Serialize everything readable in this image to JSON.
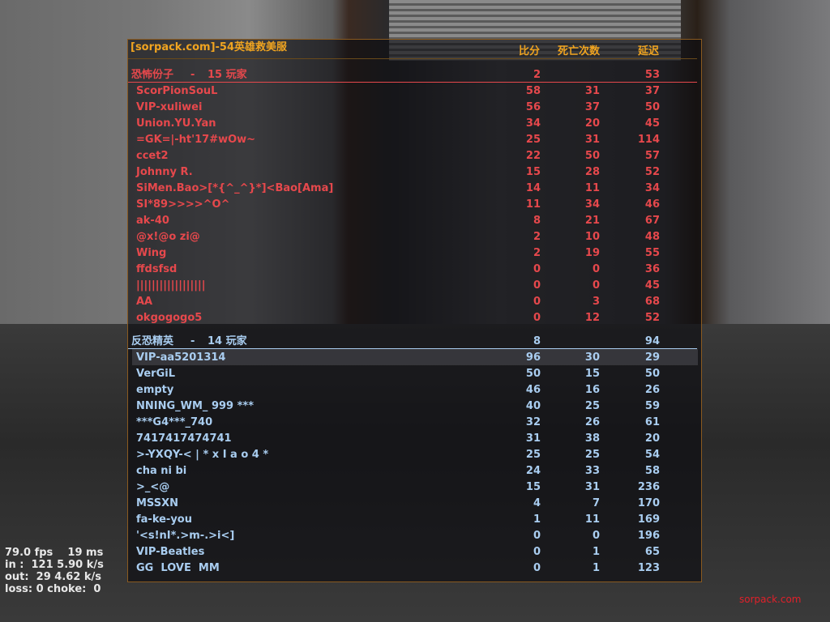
{
  "scoreboard": {
    "server_name": "[sorpack.com]-54英雄救美服",
    "columns": {
      "score": "比分",
      "deaths": "死亡次数",
      "latency": "延迟"
    },
    "colors": {
      "header": "#f0a420",
      "terrorist": "#e6484c",
      "ct": "#a9cdf0",
      "border": "#8a5a20"
    },
    "teams": [
      {
        "name": "恐怖份子",
        "separator": "-",
        "player_count": "15 玩家",
        "score": "2",
        "deaths": "",
        "latency": "53",
        "color_key": "red",
        "players": [
          {
            "name": "ScorPionSouL",
            "score": "58",
            "deaths": "31",
            "latency": "37"
          },
          {
            "name": "VIP-xuliwei",
            "score": "56",
            "deaths": "37",
            "latency": "50"
          },
          {
            "name": "Union.YU.Yan",
            "score": "34",
            "deaths": "20",
            "latency": "45"
          },
          {
            "name": "=GK=|-ht'17#wOw~",
            "score": "25",
            "deaths": "31",
            "latency": "114"
          },
          {
            "name": "ccet2",
            "score": "22",
            "deaths": "50",
            "latency": "57"
          },
          {
            "name": "Johnny R.",
            "score": "15",
            "deaths": "28",
            "latency": "52"
          },
          {
            "name": "SiMen.Bao>[*{^_^}*]<Bao[Ama]",
            "score": "14",
            "deaths": "11",
            "latency": "34"
          },
          {
            "name": "SI*89>>>>^O^",
            "score": "11",
            "deaths": "34",
            "latency": "46"
          },
          {
            "name": "ak-40",
            "score": "8",
            "deaths": "21",
            "latency": "67"
          },
          {
            "name": "@x!@o zi@",
            "score": "2",
            "deaths": "10",
            "latency": "48"
          },
          {
            "name": "Wing",
            "score": "2",
            "deaths": "19",
            "latency": "55"
          },
          {
            "name": "ffdsfsd",
            "score": "0",
            "deaths": "0",
            "latency": "36"
          },
          {
            "name": "||||||||||||||||||",
            "score": "0",
            "deaths": "0",
            "latency": "45"
          },
          {
            "name": "AA",
            "score": "0",
            "deaths": "3",
            "latency": "68"
          },
          {
            "name": "okgogogo5",
            "score": "0",
            "deaths": "12",
            "latency": "52"
          }
        ]
      },
      {
        "name": "反恐精英",
        "separator": "-",
        "player_count": "14 玩家",
        "score": "8",
        "deaths": "",
        "latency": "94",
        "color_key": "blue",
        "players": [
          {
            "name": "VIP-aa5201314",
            "score": "96",
            "deaths": "30",
            "latency": "29",
            "highlighted": true
          },
          {
            "name": "VerGiL",
            "score": "50",
            "deaths": "15",
            "latency": "50"
          },
          {
            "name": "empty",
            "score": "46",
            "deaths": "16",
            "latency": "26"
          },
          {
            "name": "NNING_WM_ 999 ***",
            "score": "40",
            "deaths": "25",
            "latency": "59"
          },
          {
            "name": "***G4***_740",
            "score": "32",
            "deaths": "26",
            "latency": "61"
          },
          {
            "name": "7417417474741",
            "score": "31",
            "deaths": "38",
            "latency": "20"
          },
          {
            "name": ">-YXQY-< | * x I a o 4 *",
            "score": "25",
            "deaths": "25",
            "latency": "54"
          },
          {
            "name": "cha ni bi",
            "score": "24",
            "deaths": "33",
            "latency": "58"
          },
          {
            "name": ">_<@",
            "score": "15",
            "deaths": "31",
            "latency": "236"
          },
          {
            "name": "MSSXN",
            "score": "4",
            "deaths": "7",
            "latency": "170"
          },
          {
            "name": "fa-ke-you",
            "score": "1",
            "deaths": "11",
            "latency": "169"
          },
          {
            "name": "'<s!nI*.>m-.>i<]",
            "score": "0",
            "deaths": "0",
            "latency": "196"
          },
          {
            "name": "VIP-Beatles",
            "score": "0",
            "deaths": "1",
            "latency": "65"
          },
          {
            "name": "GG  LOVE  MM",
            "score": "0",
            "deaths": "1",
            "latency": "123"
          }
        ]
      }
    ]
  },
  "net_stats": {
    "line1": "79.0 fps    19 ms",
    "line2": "in :  121 5.90 k/s",
    "line3": "out:  29 4.62 k/s",
    "line4": "loss: 0 choke:  0"
  },
  "watermark": "sorpack.com"
}
